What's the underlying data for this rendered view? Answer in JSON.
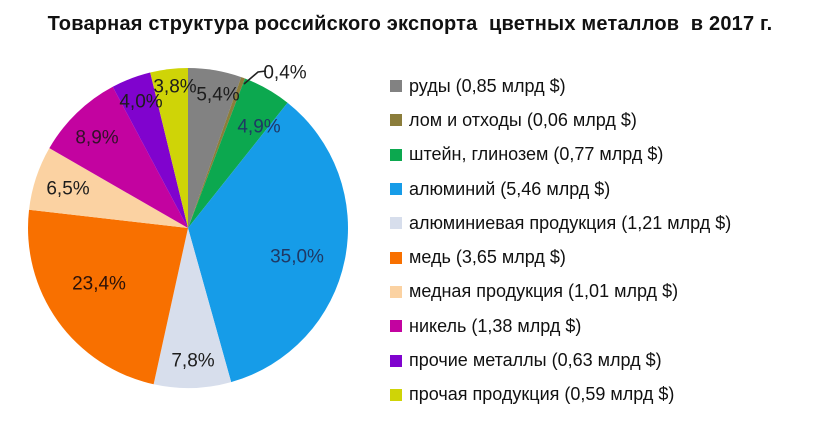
{
  "chart_data": {
    "type": "pie",
    "title": "Товарная структура российского экспорта  цветных металлов  в 2017 г.",
    "legend_position": "right",
    "unit": "млрд $",
    "slices": [
      {
        "name": "руды",
        "value_text": "0,85 млрд $",
        "percent": 5.4,
        "percent_label": "5,4%",
        "color": "#828282",
        "label_color": "#1c1c1c",
        "label_outside": false
      },
      {
        "name": "лом и отходы",
        "value_text": "0,06 млрд $",
        "percent": 0.4,
        "percent_label": "0,4%",
        "color": "#8B7D3B",
        "label_color": "#1c1c1c",
        "label_outside": true
      },
      {
        "name": "штейн, глинозем",
        "value_text": "0,77 млрд $",
        "percent": 4.9,
        "percent_label": "4,9%",
        "color": "#0CA84F",
        "label_color": "#1f3864",
        "label_outside": false
      },
      {
        "name": "алюминий",
        "value_text": "5,46 млрд $",
        "percent": 35.0,
        "percent_label": "35,0%",
        "color": "#169CE8",
        "label_color": "#1f3864",
        "label_outside": false
      },
      {
        "name": "алюминиевая продукция",
        "value_text": "1,21 млрд $",
        "percent": 7.8,
        "percent_label": "7,8%",
        "color": "#D7DEEC",
        "label_color": "#1c1c1c",
        "label_outside": false
      },
      {
        "name": "медь",
        "value_text": "3,65 млрд $",
        "percent": 23.4,
        "percent_label": "23,4%",
        "color": "#F87000",
        "label_color": "#2b1108",
        "label_outside": false
      },
      {
        "name": "медная продукция",
        "value_text": "1,01 млрд $",
        "percent": 6.5,
        "percent_label": "6,5%",
        "color": "#FBD2A2",
        "label_color": "#1c1c1c",
        "label_outside": false
      },
      {
        "name": "никель",
        "value_text": "1,38 млрд $",
        "percent": 8.9,
        "percent_label": "8,9%",
        "color": "#C303A0",
        "label_color": "#331029",
        "label_outside": false
      },
      {
        "name": "прочие металлы",
        "value_text": "0,63 млрд $",
        "percent": 4.0,
        "percent_label": "4,0%",
        "color": "#8003CE",
        "label_color": "#1c1c1c",
        "label_outside": false
      },
      {
        "name": "прочая продукция",
        "value_text": "0,59 млрд $",
        "percent": 3.8,
        "percent_label": "3,8%",
        "color": "#CFD407",
        "label_color": "#1c1c1c",
        "label_outside": false
      }
    ]
  }
}
